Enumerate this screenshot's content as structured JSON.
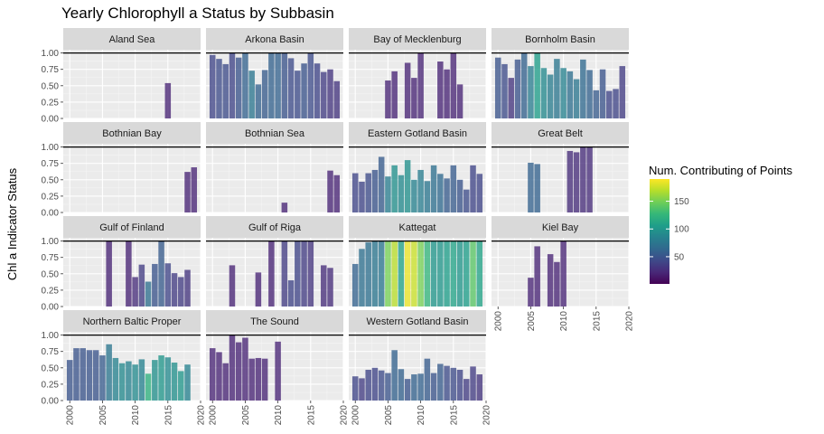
{
  "chart_data": {
    "type": "bar",
    "title": "Yearly Chlorophyll a Status by Subbasin",
    "ylabel": "Chl a Indicator Status",
    "xlabel": "",
    "xlim": [
      1999,
      2020
    ],
    "ylim": [
      0,
      1.05
    ],
    "x_ticks": [
      2000,
      2005,
      2010,
      2015,
      2020
    ],
    "y_ticks": [
      0,
      0.25,
      0.5,
      0.75,
      1.0
    ],
    "y_tick_labels": [
      "0.00",
      "0.25",
      "0.50",
      "0.75",
      "1.00"
    ],
    "grid": true,
    "reference_line": 1.0,
    "legend": {
      "title": "Num. Contributing of Points",
      "placement": "right",
      "range": [
        1,
        190
      ],
      "ticks": [
        50,
        100,
        150
      ]
    },
    "color_scale": "viridis",
    "panels": [
      {
        "name": "Aland Sea",
        "bars": [
          {
            "year": 2015,
            "value": 0.54,
            "n": 20
          }
        ]
      },
      {
        "name": "Arkona Basin",
        "bars": [
          {
            "year": 2000,
            "value": 0.97,
            "n": 40
          },
          {
            "year": 2001,
            "value": 0.91,
            "n": 45
          },
          {
            "year": 2002,
            "value": 0.83,
            "n": 45
          },
          {
            "year": 2003,
            "value": 1.0,
            "n": 40
          },
          {
            "year": 2004,
            "value": 0.93,
            "n": 50
          },
          {
            "year": 2005,
            "value": 1.0,
            "n": 60
          },
          {
            "year": 2006,
            "value": 0.73,
            "n": 75
          },
          {
            "year": 2007,
            "value": 0.52,
            "n": 60
          },
          {
            "year": 2008,
            "value": 0.74,
            "n": 55
          },
          {
            "year": 2009,
            "value": 1.0,
            "n": 60
          },
          {
            "year": 2010,
            "value": 1.0,
            "n": 60
          },
          {
            "year": 2011,
            "value": 1.0,
            "n": 50
          },
          {
            "year": 2012,
            "value": 0.92,
            "n": 45
          },
          {
            "year": 2013,
            "value": 0.73,
            "n": 45
          },
          {
            "year": 2014,
            "value": 0.84,
            "n": 50
          },
          {
            "year": 2015,
            "value": 1.0,
            "n": 45
          },
          {
            "year": 2016,
            "value": 0.84,
            "n": 40
          },
          {
            "year": 2017,
            "value": 0.71,
            "n": 35
          },
          {
            "year": 2018,
            "value": 0.75,
            "n": 30
          },
          {
            "year": 2019,
            "value": 0.57,
            "n": 30
          }
        ]
      },
      {
        "name": "Bay of Mecklenburg",
        "bars": [
          {
            "year": 2005,
            "value": 0.58,
            "n": 20
          },
          {
            "year": 2006,
            "value": 0.72,
            "n": 20
          },
          {
            "year": 2008,
            "value": 0.85,
            "n": 20
          },
          {
            "year": 2009,
            "value": 0.62,
            "n": 20
          },
          {
            "year": 2010,
            "value": 1.0,
            "n": 20
          },
          {
            "year": 2013,
            "value": 0.87,
            "n": 20
          },
          {
            "year": 2014,
            "value": 0.75,
            "n": 20
          },
          {
            "year": 2015,
            "value": 1.0,
            "n": 20
          },
          {
            "year": 2016,
            "value": 0.52,
            "n": 20
          }
        ]
      },
      {
        "name": "Bornholm Basin",
        "bars": [
          {
            "year": 2000,
            "value": 0.93,
            "n": 50
          },
          {
            "year": 2001,
            "value": 0.83,
            "n": 45
          },
          {
            "year": 2002,
            "value": 0.62,
            "n": 30
          },
          {
            "year": 2003,
            "value": 0.9,
            "n": 50
          },
          {
            "year": 2004,
            "value": 1.0,
            "n": 60
          },
          {
            "year": 2005,
            "value": 0.8,
            "n": 80
          },
          {
            "year": 2006,
            "value": 1.0,
            "n": 105
          },
          {
            "year": 2007,
            "value": 0.77,
            "n": 90
          },
          {
            "year": 2008,
            "value": 0.67,
            "n": 80
          },
          {
            "year": 2009,
            "value": 0.91,
            "n": 75
          },
          {
            "year": 2010,
            "value": 0.77,
            "n": 85
          },
          {
            "year": 2011,
            "value": 0.72,
            "n": 70
          },
          {
            "year": 2012,
            "value": 0.6,
            "n": 75
          },
          {
            "year": 2013,
            "value": 0.9,
            "n": 65
          },
          {
            "year": 2014,
            "value": 0.74,
            "n": 60
          },
          {
            "year": 2015,
            "value": 0.43,
            "n": 55
          },
          {
            "year": 2016,
            "value": 0.75,
            "n": 50
          },
          {
            "year": 2017,
            "value": 0.42,
            "n": 40
          },
          {
            "year": 2018,
            "value": 0.45,
            "n": 40
          },
          {
            "year": 2019,
            "value": 0.8,
            "n": 35
          }
        ]
      },
      {
        "name": "Bothnian Bay",
        "bars": [
          {
            "year": 2018,
            "value": 0.62,
            "n": 20
          },
          {
            "year": 2019,
            "value": 0.69,
            "n": 20
          }
        ]
      },
      {
        "name": "Bothnian Sea",
        "bars": [
          {
            "year": 2011,
            "value": 0.15,
            "n": 20
          },
          {
            "year": 2018,
            "value": 0.64,
            "n": 20
          },
          {
            "year": 2019,
            "value": 0.57,
            "n": 20
          }
        ]
      },
      {
        "name": "Eastern Gotland Basin",
        "bars": [
          {
            "year": 2000,
            "value": 0.6,
            "n": 40
          },
          {
            "year": 2001,
            "value": 0.47,
            "n": 40
          },
          {
            "year": 2002,
            "value": 0.6,
            "n": 45
          },
          {
            "year": 2003,
            "value": 0.65,
            "n": 50
          },
          {
            "year": 2004,
            "value": 0.85,
            "n": 55
          },
          {
            "year": 2005,
            "value": 0.55,
            "n": 80
          },
          {
            "year": 2006,
            "value": 0.72,
            "n": 95
          },
          {
            "year": 2007,
            "value": 0.57,
            "n": 90
          },
          {
            "year": 2008,
            "value": 0.8,
            "n": 95
          },
          {
            "year": 2009,
            "value": 0.5,
            "n": 85
          },
          {
            "year": 2010,
            "value": 0.65,
            "n": 80
          },
          {
            "year": 2011,
            "value": 0.48,
            "n": 75
          },
          {
            "year": 2012,
            "value": 0.72,
            "n": 70
          },
          {
            "year": 2013,
            "value": 0.59,
            "n": 65
          },
          {
            "year": 2014,
            "value": 0.52,
            "n": 55
          },
          {
            "year": 2015,
            "value": 0.72,
            "n": 55
          },
          {
            "year": 2016,
            "value": 0.5,
            "n": 50
          },
          {
            "year": 2017,
            "value": 0.35,
            "n": 45
          },
          {
            "year": 2018,
            "value": 0.72,
            "n": 40
          },
          {
            "year": 2019,
            "value": 0.59,
            "n": 40
          }
        ]
      },
      {
        "name": "Great Belt",
        "bars": [
          {
            "year": 2005,
            "value": 0.76,
            "n": 60
          },
          {
            "year": 2006,
            "value": 0.74,
            "n": 60
          },
          {
            "year": 2011,
            "value": 0.94,
            "n": 25
          },
          {
            "year": 2012,
            "value": 0.92,
            "n": 25
          },
          {
            "year": 2013,
            "value": 1.0,
            "n": 25
          },
          {
            "year": 2014,
            "value": 1.0,
            "n": 25
          }
        ]
      },
      {
        "name": "Gulf of Finland",
        "bars": [
          {
            "year": 2006,
            "value": 1.0,
            "n": 20
          },
          {
            "year": 2009,
            "value": 1.0,
            "n": 20
          },
          {
            "year": 2010,
            "value": 0.45,
            "n": 25
          },
          {
            "year": 2011,
            "value": 0.64,
            "n": 35
          },
          {
            "year": 2012,
            "value": 0.38,
            "n": 70
          },
          {
            "year": 2013,
            "value": 0.65,
            "n": 50
          },
          {
            "year": 2014,
            "value": 1.0,
            "n": 55
          },
          {
            "year": 2015,
            "value": 0.66,
            "n": 40
          },
          {
            "year": 2016,
            "value": 0.51,
            "n": 35
          },
          {
            "year": 2017,
            "value": 0.45,
            "n": 35
          },
          {
            "year": 2018,
            "value": 0.56,
            "n": 30
          }
        ]
      },
      {
        "name": "Gulf of Riga",
        "bars": [
          {
            "year": 2003,
            "value": 0.63,
            "n": 20
          },
          {
            "year": 2007,
            "value": 0.52,
            "n": 20
          },
          {
            "year": 2009,
            "value": 1.0,
            "n": 20
          },
          {
            "year": 2011,
            "value": 1.0,
            "n": 35
          },
          {
            "year": 2012,
            "value": 0.4,
            "n": 40
          },
          {
            "year": 2013,
            "value": 1.0,
            "n": 40
          },
          {
            "year": 2014,
            "value": 1.0,
            "n": 35
          },
          {
            "year": 2015,
            "value": 1.0,
            "n": 30
          },
          {
            "year": 2017,
            "value": 0.63,
            "n": 25
          },
          {
            "year": 2018,
            "value": 0.59,
            "n": 25
          }
        ]
      },
      {
        "name": "Kattegat",
        "bars": [
          {
            "year": 2000,
            "value": 0.65,
            "n": 60
          },
          {
            "year": 2001,
            "value": 0.88,
            "n": 70
          },
          {
            "year": 2002,
            "value": 0.98,
            "n": 70
          },
          {
            "year": 2003,
            "value": 1.0,
            "n": 75
          },
          {
            "year": 2004,
            "value": 1.0,
            "n": 75
          },
          {
            "year": 2005,
            "value": 1.0,
            "n": 150
          },
          {
            "year": 2006,
            "value": 1.0,
            "n": 170
          },
          {
            "year": 2007,
            "value": 1.0,
            "n": 110
          },
          {
            "year": 2008,
            "value": 1.0,
            "n": 185
          },
          {
            "year": 2009,
            "value": 1.0,
            "n": 175
          },
          {
            "year": 2010,
            "value": 1.0,
            "n": 150
          },
          {
            "year": 2011,
            "value": 1.0,
            "n": 125
          },
          {
            "year": 2012,
            "value": 1.0,
            "n": 100
          },
          {
            "year": 2013,
            "value": 1.0,
            "n": 100
          },
          {
            "year": 2014,
            "value": 1.0,
            "n": 105
          },
          {
            "year": 2015,
            "value": 1.0,
            "n": 110
          },
          {
            "year": 2016,
            "value": 1.0,
            "n": 100
          },
          {
            "year": 2017,
            "value": 1.0,
            "n": 105
          },
          {
            "year": 2018,
            "value": 1.0,
            "n": 140
          },
          {
            "year": 2019,
            "value": 1.0,
            "n": 110
          }
        ]
      },
      {
        "name": "Kiel Bay",
        "bars": [
          {
            "year": 2005,
            "value": 0.44,
            "n": 20
          },
          {
            "year": 2006,
            "value": 0.92,
            "n": 20
          },
          {
            "year": 2008,
            "value": 0.8,
            "n": 20
          },
          {
            "year": 2009,
            "value": 0.68,
            "n": 20
          },
          {
            "year": 2010,
            "value": 1.0,
            "n": 20
          }
        ]
      },
      {
        "name": "Northern Baltic Proper",
        "bars": [
          {
            "year": 2000,
            "value": 0.62,
            "n": 50
          },
          {
            "year": 2001,
            "value": 0.8,
            "n": 50
          },
          {
            "year": 2002,
            "value": 0.8,
            "n": 50
          },
          {
            "year": 2003,
            "value": 0.77,
            "n": 50
          },
          {
            "year": 2004,
            "value": 0.77,
            "n": 50
          },
          {
            "year": 2005,
            "value": 0.69,
            "n": 55
          },
          {
            "year": 2006,
            "value": 0.86,
            "n": 75
          },
          {
            "year": 2007,
            "value": 0.65,
            "n": 85
          },
          {
            "year": 2008,
            "value": 0.57,
            "n": 90
          },
          {
            "year": 2009,
            "value": 0.6,
            "n": 85
          },
          {
            "year": 2010,
            "value": 0.55,
            "n": 90
          },
          {
            "year": 2011,
            "value": 0.63,
            "n": 85
          },
          {
            "year": 2012,
            "value": 0.41,
            "n": 120
          },
          {
            "year": 2013,
            "value": 0.62,
            "n": 95
          },
          {
            "year": 2014,
            "value": 0.69,
            "n": 100
          },
          {
            "year": 2015,
            "value": 0.66,
            "n": 90
          },
          {
            "year": 2016,
            "value": 0.58,
            "n": 95
          },
          {
            "year": 2017,
            "value": 0.45,
            "n": 100
          },
          {
            "year": 2018,
            "value": 0.55,
            "n": 85
          }
        ]
      },
      {
        "name": "The Sound",
        "bars": [
          {
            "year": 2000,
            "value": 0.8,
            "n": 20
          },
          {
            "year": 2001,
            "value": 0.74,
            "n": 20
          },
          {
            "year": 2002,
            "value": 0.57,
            "n": 20
          },
          {
            "year": 2003,
            "value": 1.0,
            "n": 20
          },
          {
            "year": 2004,
            "value": 0.89,
            "n": 20
          },
          {
            "year": 2005,
            "value": 0.96,
            "n": 20
          },
          {
            "year": 2006,
            "value": 0.64,
            "n": 20
          },
          {
            "year": 2007,
            "value": 0.65,
            "n": 20
          },
          {
            "year": 2008,
            "value": 0.64,
            "n": 20
          },
          {
            "year": 2010,
            "value": 0.9,
            "n": 20
          }
        ]
      },
      {
        "name": "Western Gotland Basin",
        "bars": [
          {
            "year": 2000,
            "value": 0.37,
            "n": 40
          },
          {
            "year": 2001,
            "value": 0.34,
            "n": 35
          },
          {
            "year": 2002,
            "value": 0.47,
            "n": 40
          },
          {
            "year": 2003,
            "value": 0.5,
            "n": 40
          },
          {
            "year": 2004,
            "value": 0.46,
            "n": 45
          },
          {
            "year": 2005,
            "value": 0.42,
            "n": 50
          },
          {
            "year": 2006,
            "value": 0.77,
            "n": 60
          },
          {
            "year": 2007,
            "value": 0.48,
            "n": 60
          },
          {
            "year": 2008,
            "value": 0.33,
            "n": 50
          },
          {
            "year": 2009,
            "value": 0.4,
            "n": 60
          },
          {
            "year": 2010,
            "value": 0.41,
            "n": 60
          },
          {
            "year": 2011,
            "value": 0.64,
            "n": 55
          },
          {
            "year": 2012,
            "value": 0.42,
            "n": 50
          },
          {
            "year": 2013,
            "value": 0.56,
            "n": 55
          },
          {
            "year": 2014,
            "value": 0.53,
            "n": 45
          },
          {
            "year": 2015,
            "value": 0.5,
            "n": 45
          },
          {
            "year": 2016,
            "value": 0.47,
            "n": 40
          },
          {
            "year": 2017,
            "value": 0.33,
            "n": 35
          },
          {
            "year": 2018,
            "value": 0.52,
            "n": 35
          },
          {
            "year": 2019,
            "value": 0.4,
            "n": 30
          }
        ]
      }
    ]
  }
}
